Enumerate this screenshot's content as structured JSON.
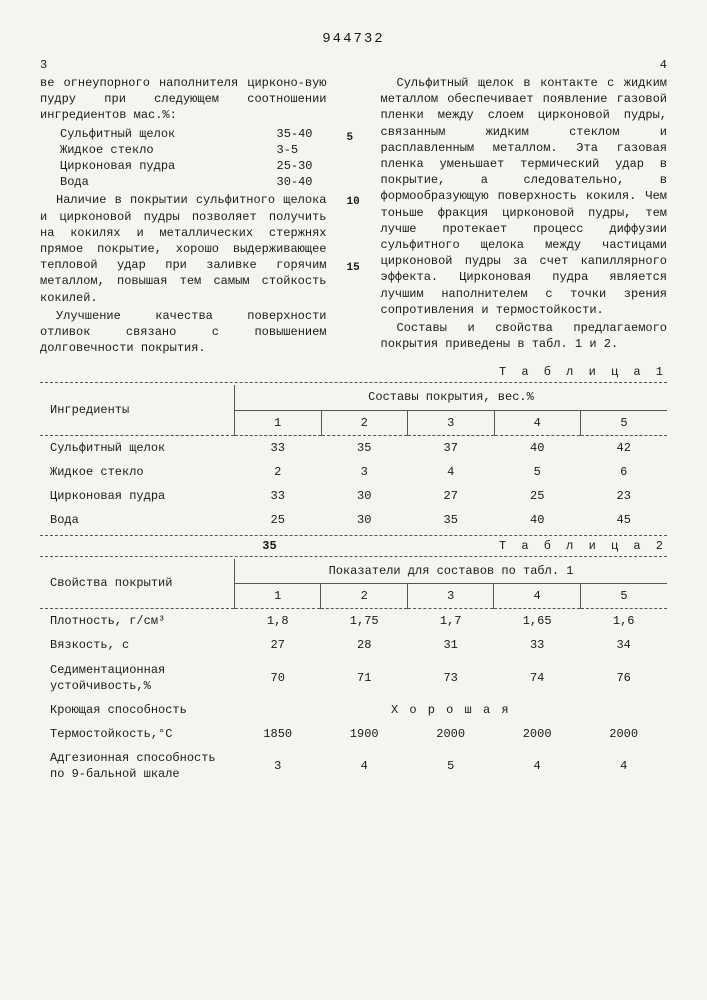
{
  "doc_number": "944732",
  "page_left": "3",
  "page_right": "4",
  "left_col": {
    "p0": "ве огнеупорного наполнителя цирконо-вую пудру при следующем соотношении ингредиентов мас.%:",
    "ing": [
      {
        "name": "Сульфитный щелок",
        "val": "35-40"
      },
      {
        "name": "Жидкое стекло",
        "val": "3-5"
      },
      {
        "name": "Цирконовая пудра",
        "val": "25-30"
      },
      {
        "name": "Вода",
        "val": "30-40"
      }
    ],
    "p1": "Наличие в покрытии сульфитного щелока и цирконовой пудры позволяет получить на кокилях и металлических стержнях прямое покрытие, хорошо выдерживающее тепловой удар при заливке горячим металлом, повышая тем самым стойкость кокилей.",
    "p2": "Улучшение качества поверхности отливок связано с повышением долговечности покрытия."
  },
  "right_col": {
    "p0": "Сульфитный щелок в контакте с жидким металлом обеспечивает появление газовой пленки между слоем цирконовой пудры, связанным жидким стеклом и расплавленным металлом. Эта газовая пленка уменьшает термический удар в покрытие, а следовательно, в формообразующую поверхность кокиля. Чем тоньше фракция цирконовой пудры, тем лучше протекает процесс диффузии сульфитного щелока между частицами цирконовой пудры за счет капиллярного эффекта. Цирконовая пудра является лучшим наполнителем с точки зрения сопротивления и термостойкости.",
    "p1": "Составы и свойства предлагаемого покрытия приведены в табл. 1 и 2."
  },
  "line_nums": [
    "5",
    "10",
    "15"
  ],
  "table1": {
    "label": "Т а б л и ц а 1",
    "col_ingredients": "Ингредиенты",
    "col_compositions": "Составы покрытия, вес.%",
    "cols": [
      "1",
      "2",
      "3",
      "4",
      "5"
    ],
    "rows": [
      {
        "name": "Сульфитный щелок",
        "vals": [
          "33",
          "35",
          "37",
          "40",
          "42"
        ]
      },
      {
        "name": "Жидкое стекло",
        "vals": [
          "2",
          "3",
          "4",
          "5",
          "6"
        ]
      },
      {
        "name": "Цирконовая пудра",
        "vals": [
          "33",
          "30",
          "27",
          "25",
          "23"
        ]
      },
      {
        "name": "Вода",
        "vals": [
          "25",
          "30",
          "35",
          "40",
          "45"
        ]
      }
    ]
  },
  "mid_num": "35",
  "table2": {
    "label": "Т а б л и ц а 2",
    "col_props": "Свойства покрытий",
    "col_indicators": "Показатели для составов по табл. 1",
    "cols": [
      "1",
      "2",
      "3",
      "4",
      "5"
    ],
    "rows": [
      {
        "name": "Плотность, г/см³",
        "vals": [
          "1,8",
          "1,75",
          "1,7",
          "1,65",
          "1,6"
        ]
      },
      {
        "name": "Вязкость, с",
        "vals": [
          "27",
          "28",
          "31",
          "33",
          "34"
        ]
      },
      {
        "name": "Седиментационная устойчивость,%",
        "vals": [
          "70",
          "71",
          "73",
          "74",
          "76"
        ]
      },
      {
        "name": "Кроющая способность",
        "span": "Х о р о ш а я"
      },
      {
        "name": "Термостойкость,°С",
        "vals": [
          "1850",
          "1900",
          "2000",
          "2000",
          "2000"
        ]
      },
      {
        "name": "Адгезионная способность по 9-бальной шкале",
        "vals": [
          "3",
          "4",
          "5",
          "4",
          "4"
        ]
      }
    ]
  }
}
